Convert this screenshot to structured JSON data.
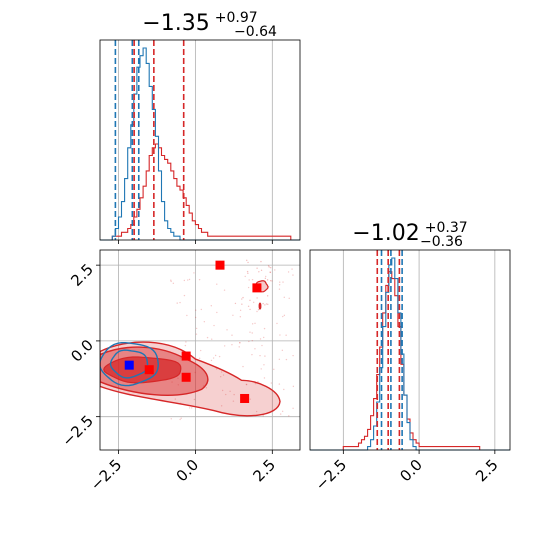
{
  "chart_data": {
    "type": "corner",
    "colors": {
      "red": "#d62728",
      "blue": "#1f77b4",
      "marker_red": "#ff0000",
      "marker_blue": "#0000ff",
      "grid": "#b0b0b0"
    },
    "params": [
      {
        "title": {
          "main": "−1.35",
          "sup": "+0.97",
          "sub": "−0.64"
        },
        "range": [
          -3.1,
          3.4
        ],
        "ticks": [
          -2.5,
          0.0,
          2.5
        ],
        "tick_labels": [
          "−2.5",
          "0.0",
          "2.5"
        ]
      },
      {
        "title": {
          "main": "−1.02",
          "sup": "+0.37",
          "sub": "−0.36"
        },
        "range": [
          -3.6,
          3.0
        ],
        "ticks": [
          -2.5,
          0.0,
          2.5
        ],
        "tick_labels": [
          "−2.5",
          "0.0",
          "2.5"
        ]
      }
    ],
    "hist_param1": {
      "x_range": [
        -3.1,
        3.4
      ],
      "red": {
        "bins_start": -3.1,
        "bin_width": 0.1,
        "counts": [
          0,
          0,
          0,
          0,
          1,
          1,
          1,
          2,
          2,
          3,
          4,
          6,
          8,
          11,
          14,
          18,
          22,
          24,
          25,
          24,
          22,
          21,
          20,
          18,
          16,
          14,
          13,
          11,
          9,
          7,
          5,
          4,
          3,
          2,
          2,
          1,
          1,
          1,
          1,
          1,
          1,
          1,
          1,
          1,
          1,
          1,
          1,
          1,
          1,
          1,
          1,
          1,
          1,
          1,
          1,
          1,
          1,
          1,
          1,
          1,
          1,
          1,
          0,
          0,
          0
        ]
      },
      "blue": {
        "bins_start": -3.1,
        "bin_width": 0.1,
        "counts": [
          0,
          0,
          0,
          0,
          1,
          3,
          6,
          10,
          16,
          24,
          30,
          38,
          45,
          48,
          50,
          46,
          40,
          34,
          27,
          18,
          10,
          5,
          3,
          2,
          1,
          1,
          0,
          0,
          0,
          0,
          0,
          0,
          0,
          0,
          0,
          0,
          0,
          0,
          0,
          0,
          0,
          0,
          0,
          0,
          0,
          0,
          0,
          0,
          0,
          0,
          0,
          0,
          0,
          0,
          0,
          0,
          0,
          0,
          0,
          0,
          0,
          0,
          0,
          0,
          0
        ]
      },
      "quantiles_red": [
        -1.99,
        -1.35,
        -0.38
      ],
      "quantiles_blue": [
        -2.6,
        -2.05,
        -1.84
      ]
    },
    "hist_param2": {
      "x_range": [
        -3.6,
        3.0
      ],
      "red": {
        "bins_start": -3.6,
        "bin_width": 0.1,
        "counts": [
          0,
          0,
          0,
          0,
          0,
          0,
          0,
          0,
          0,
          0,
          0,
          1,
          1,
          1,
          1,
          1,
          2,
          3,
          4,
          6,
          10,
          15,
          22,
          30,
          40,
          48,
          52,
          50,
          45,
          36,
          25,
          16,
          9,
          5,
          3,
          2,
          1,
          1,
          1,
          1,
          1,
          1,
          1,
          1,
          1,
          1,
          1,
          1,
          1,
          1,
          1,
          1,
          1,
          1,
          1,
          1,
          0,
          0,
          0,
          0,
          0,
          0,
          0,
          0,
          0,
          0
        ]
      },
      "blue": {
        "bins_start": -3.6,
        "bin_width": 0.1,
        "counts": [
          0,
          0,
          0,
          0,
          0,
          0,
          0,
          0,
          0,
          0,
          0,
          0,
          0,
          0,
          0,
          0,
          0,
          0,
          0,
          1,
          3,
          7,
          14,
          24,
          36,
          46,
          54,
          56,
          50,
          40,
          28,
          16,
          8,
          3,
          1,
          0,
          0,
          0,
          0,
          0,
          0,
          0,
          0,
          0,
          0,
          0,
          0,
          0,
          0,
          0,
          0,
          0,
          0,
          0,
          0,
          0,
          0,
          0,
          0,
          0,
          0,
          0,
          0,
          0,
          0,
          0
        ]
      },
      "quantiles_red": [
        -1.38,
        -1.02,
        -0.65
      ],
      "quantiles_blue": [
        -1.24,
        -0.93,
        -0.56
      ]
    },
    "scatter_2d": {
      "x_range": [
        -3.1,
        3.4
      ],
      "y_range": [
        -3.6,
        3.0
      ],
      "red_markers": [
        {
          "x": 0.8,
          "y": 2.5
        },
        {
          "x": 2.0,
          "y": 1.75
        },
        {
          "x": -0.3,
          "y": -0.5
        },
        {
          "x": -1.5,
          "y": -0.95
        },
        {
          "x": -0.3,
          "y": -1.2
        },
        {
          "x": 1.6,
          "y": -1.9
        }
      ],
      "blue_marker": {
        "x": -2.15,
        "y": -0.8
      }
    }
  }
}
